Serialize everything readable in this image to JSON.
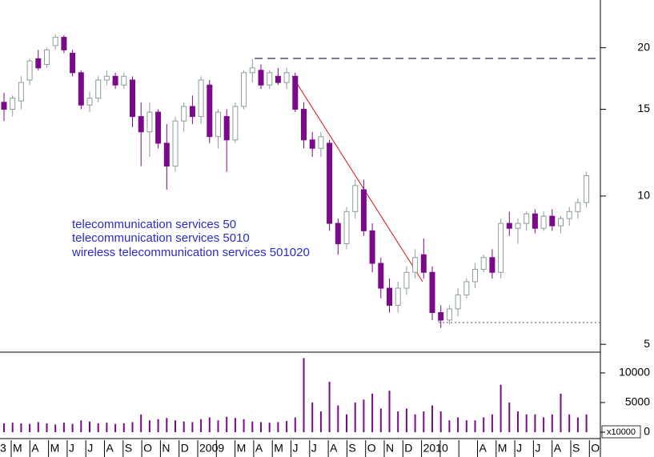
{
  "chart_data": {
    "type": "candlestick",
    "categories": [
      "3",
      "M",
      "A",
      "M",
      "J",
      "J",
      "A",
      "S",
      "O",
      "N",
      "D",
      "2009",
      null,
      "M",
      "A",
      "M",
      "J",
      "J",
      "A",
      "S",
      "O",
      "N",
      "D",
      "2010",
      null,
      null,
      "A",
      "M",
      "J",
      "J",
      "A",
      "S",
      "O"
    ],
    "open": [
      15.5,
      15.0,
      15.6,
      17.2,
      19.0,
      18.5,
      20.2,
      21.0,
      19.5,
      17.8,
      15.3,
      15.8,
      17.2,
      17.5,
      16.8,
      17.2,
      14.5,
      13.5,
      14.8,
      12.8,
      11.5,
      14.2,
      15.2,
      14.5,
      16.8,
      13.2,
      14.5,
      13.0,
      15.2,
      17.8,
      18.0,
      16.8,
      17.5,
      17.0,
      17.5,
      15.0,
      13.0,
      12.5,
      12.8,
      8.8,
      8.0,
      9.3,
      10.3,
      8.5,
      7.3,
      6.5,
      6.0,
      6.5,
      7.0,
      7.6,
      7.0,
      5.8,
      5.6,
      5.9,
      6.3,
      6.7,
      7.1,
      7.5,
      7.0,
      8.8,
      8.6,
      8.8,
      9.2,
      8.6,
      9.1,
      8.7,
      9.0,
      9.3,
      9.7
    ],
    "high": [
      16.2,
      16.0,
      17.5,
      19.0,
      19.8,
      20.0,
      21.3,
      21.2,
      19.8,
      18.0,
      16.3,
      17.5,
      18.0,
      17.8,
      17.8,
      17.5,
      15.5,
      15.5,
      15.0,
      14.0,
      14.5,
      15.5,
      16.0,
      17.5,
      17.2,
      15.0,
      15.0,
      15.5,
      18.0,
      19.0,
      18.5,
      18.0,
      18.2,
      18.2,
      17.8,
      15.5,
      13.5,
      13.5,
      13.0,
      9.0,
      9.5,
      10.8,
      10.8,
      8.8,
      7.5,
      6.8,
      6.7,
      7.2,
      7.8,
      8.2,
      7.2,
      6.0,
      6.0,
      6.5,
      6.8,
      7.3,
      7.6,
      7.8,
      9.0,
      9.3,
      9.0,
      9.3,
      9.4,
      9.3,
      9.4,
      9.1,
      9.5,
      9.9,
      11.2
    ],
    "low": [
      14.2,
      14.5,
      15.0,
      16.8,
      18.0,
      18.2,
      19.8,
      19.5,
      17.5,
      15.0,
      14.8,
      15.5,
      16.8,
      16.5,
      16.5,
      13.8,
      11.5,
      12.0,
      12.5,
      10.3,
      11.2,
      13.5,
      14.0,
      14.0,
      12.8,
      12.5,
      11.2,
      12.8,
      15.0,
      17.0,
      16.5,
      16.5,
      16.8,
      16.5,
      14.8,
      12.5,
      12.0,
      12.0,
      8.5,
      7.6,
      7.8,
      9.0,
      8.3,
      7.0,
      6.2,
      5.8,
      5.8,
      6.3,
      6.8,
      6.8,
      5.6,
      5.4,
      5.5,
      5.7,
      6.2,
      6.5,
      7.0,
      6.8,
      6.8,
      8.3,
      8.0,
      8.5,
      8.4,
      8.5,
      8.5,
      8.4,
      8.7,
      9.0,
      9.5
    ],
    "close": [
      15.0,
      15.8,
      17.0,
      18.8,
      18.2,
      19.8,
      21.0,
      19.8,
      17.8,
      15.3,
      15.8,
      17.2,
      17.5,
      16.8,
      17.5,
      14.5,
      13.5,
      14.8,
      12.8,
      11.5,
      14.2,
      15.2,
      14.5,
      17.2,
      13.2,
      14.8,
      13.0,
      15.2,
      17.8,
      18.2,
      16.8,
      17.8,
      17.0,
      17.8,
      15.0,
      13.0,
      12.5,
      13.2,
      8.8,
      8.0,
      9.3,
      10.5,
      8.5,
      7.3,
      6.5,
      6.0,
      6.5,
      7.0,
      7.5,
      7.0,
      5.8,
      5.6,
      5.9,
      6.3,
      6.7,
      7.1,
      7.5,
      7.0,
      8.8,
      8.6,
      8.8,
      9.2,
      8.6,
      9.1,
      8.7,
      9.0,
      9.3,
      9.7,
      11.0
    ],
    "volume": [
      1500,
      1600,
      1500,
      1400,
      1700,
      1500,
      1300,
      1600,
      1400,
      2000,
      1800,
      1500,
      1600,
      1400,
      1500,
      1700,
      3000,
      2000,
      2200,
      2400,
      2000,
      1800,
      1700,
      2200,
      2500,
      2000,
      2600,
      2400,
      2200,
      1800,
      1700,
      1600,
      1700,
      1900,
      2500,
      12500,
      5000,
      3500,
      8500,
      4500,
      3000,
      5000,
      5500,
      6500,
      4000,
      7000,
      3500,
      4000,
      3000,
      3500,
      4500,
      3500,
      2000,
      2500,
      2000,
      2000,
      2500,
      3000,
      8000,
      5000,
      3500,
      3000,
      3000,
      2500,
      3000,
      6500,
      3000,
      2500,
      3000
    ],
    "up_color": "#8c9c9c",
    "down_color": "#7a0a8a",
    "volume_color": "#7a0a8a",
    "log_scale": true,
    "ylim": [
      4.82,
      25.0
    ],
    "yticks": [
      5,
      10,
      15,
      20
    ],
    "volume_ylim": [
      0,
      13500
    ],
    "volume_yticks": [
      0,
      5000,
      10000
    ],
    "volume_unit_label": "x10000",
    "annotations": [
      "telecommunication services 50",
      "telecommunication services 5010",
      "wireless telecommunication services 501020"
    ]
  }
}
